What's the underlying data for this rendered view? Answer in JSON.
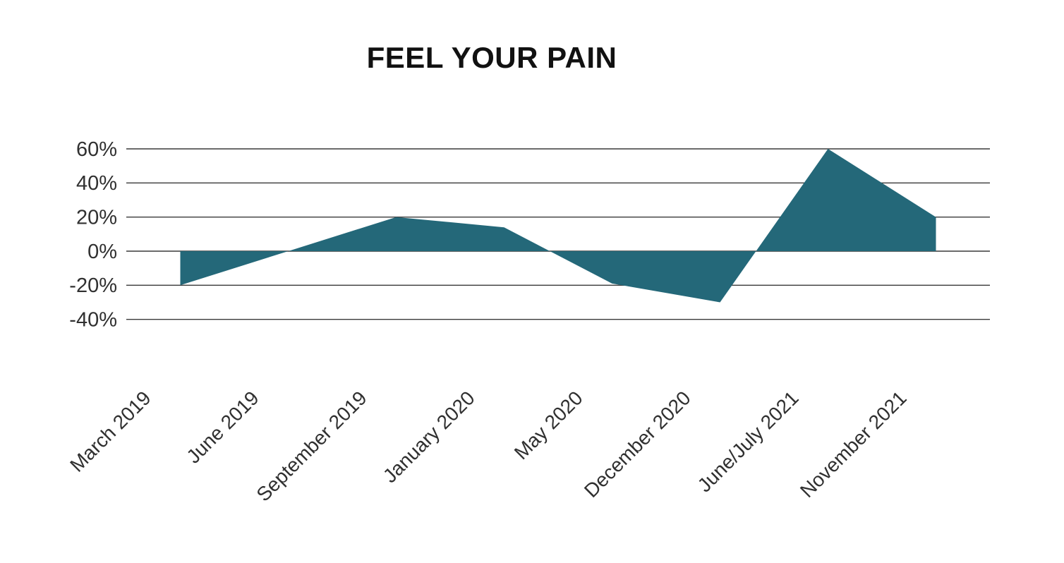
{
  "title": "FEEL YOUR PAIN",
  "chart_data": {
    "type": "area",
    "title": "FEEL YOUR PAIN",
    "categories": [
      "March 2019",
      "June 2019",
      "September 2019",
      "January 2020",
      "May 2020",
      "December 2020",
      "June/July 2021",
      "November 2021"
    ],
    "values": [
      -20,
      0,
      20,
      14,
      -19,
      -30,
      60,
      20
    ],
    "unit": "%",
    "y_ticks": [
      60,
      40,
      20,
      0,
      -20,
      -40
    ],
    "y_tick_labels": [
      "60%",
      "40%",
      "20%",
      "0%",
      "-20%",
      "-40%"
    ],
    "ylim": [
      -40,
      60
    ],
    "xlabel": "",
    "ylabel": "",
    "grid": "horizontal-only",
    "legend": "none",
    "x_label_rotation_deg": -45,
    "colors": {
      "area_fill": "#246879",
      "gridline": "#3a3a3a",
      "axis_label": "#303030",
      "title": "#111111",
      "background": "#ffffff"
    }
  }
}
